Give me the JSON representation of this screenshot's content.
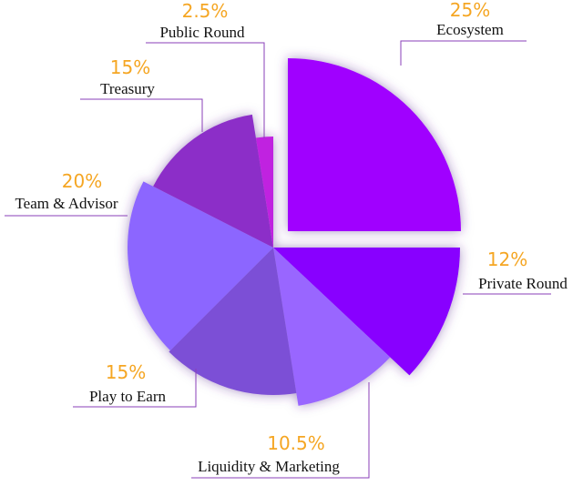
{
  "chart_data": {
    "type": "pie",
    "categories": [
      "Ecosystem",
      "Private Round",
      "Liquidity & Marketing",
      "Play to Earn",
      "Team & Advisor",
      "Treasury",
      "Public Round"
    ],
    "values": [
      25,
      12,
      10.5,
      15,
      20,
      15,
      2.5
    ],
    "value_labels": [
      "25%",
      "12%",
      "10.5%",
      "15%",
      "20%",
      "15%",
      "2.5%"
    ],
    "colors": [
      "#a000ff",
      "#8800ff",
      "#9966ff",
      "#7b4fd6",
      "#8c66ff",
      "#8c2fc8",
      "#c020e0"
    ]
  }
}
